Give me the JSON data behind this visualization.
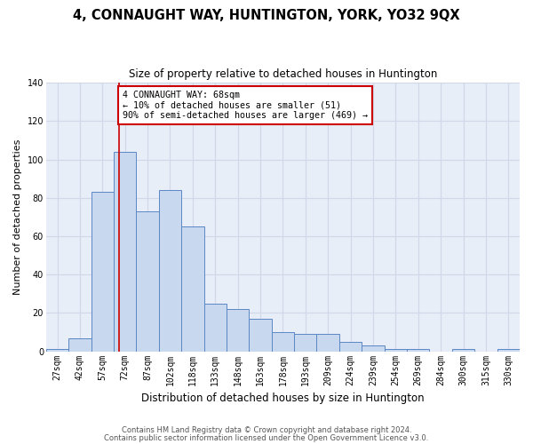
{
  "title": "4, CONNAUGHT WAY, HUNTINGTON, YORK, YO32 9QX",
  "subtitle": "Size of property relative to detached houses in Huntington",
  "xlabel": "Distribution of detached houses by size in Huntington",
  "ylabel": "Number of detached properties",
  "categories": [
    "27sqm",
    "42sqm",
    "57sqm",
    "72sqm",
    "87sqm",
    "102sqm",
    "118sqm",
    "133sqm",
    "148sqm",
    "163sqm",
    "178sqm",
    "193sqm",
    "209sqm",
    "224sqm",
    "239sqm",
    "254sqm",
    "269sqm",
    "284sqm",
    "300sqm",
    "315sqm",
    "330sqm"
  ],
  "values": [
    1,
    7,
    83,
    104,
    73,
    84,
    65,
    25,
    22,
    17,
    10,
    9,
    9,
    5,
    3,
    1,
    1,
    0,
    1,
    0,
    1
  ],
  "bar_color": "#c8d8ee",
  "bar_edge_color": "#5b87c5",
  "grid_color": "#d0d8e8",
  "background_color": "#e8eef8",
  "annotation_line_color": "#cc0000",
  "annotation_box_text_line1": "4 CONNAUGHT WAY: 68sqm",
  "annotation_box_text_line2": "← 10% of detached houses are smaller (51)",
  "annotation_box_text_line3": "90% of semi-detached houses are larger (469) →",
  "annotation_box_color": "#ffffff",
  "annotation_box_edge_color": "#cc0000",
  "ylim": [
    0,
    140
  ],
  "yticks": [
    0,
    20,
    40,
    60,
    80,
    100,
    120,
    140
  ],
  "title_fontsize": 10.5,
  "subtitle_fontsize": 8.5,
  "ylabel_fontsize": 8,
  "xlabel_fontsize": 8.5,
  "tick_fontsize": 7,
  "footer1": "Contains HM Land Registry data © Crown copyright and database right 2024.",
  "footer2": "Contains public sector information licensed under the Open Government Licence v3.0.",
  "footer_fontsize": 6.0
}
